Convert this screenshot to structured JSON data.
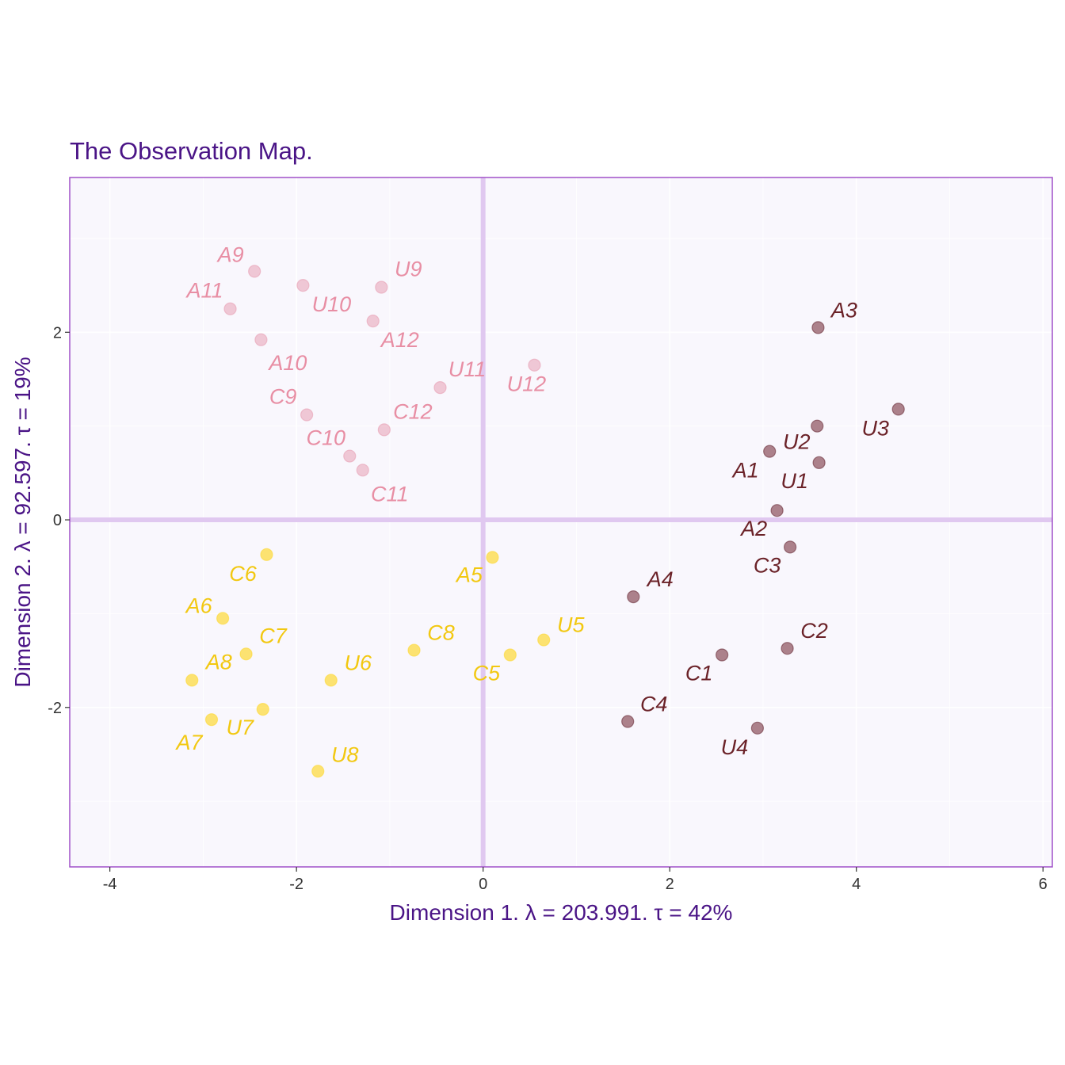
{
  "chart_data": {
    "type": "scatter",
    "title": "The Observation Map.",
    "xlabel": "Dimension 1.   λ = 203.991.  τ = 42%",
    "ylabel": "Dimension 2.   λ = 92.597.  τ = 19%",
    "xlim": [
      -4.43,
      6.1
    ],
    "ylim": [
      -3.7,
      3.65
    ],
    "xticks": [
      -4,
      -2,
      0,
      2,
      4,
      6
    ],
    "yticks": [
      -2,
      0,
      2
    ],
    "grid": true,
    "legend": "none",
    "colors": {
      "pink": "#e8a0b4",
      "yellow": "#fdd835",
      "maroon": "#8b4f5a",
      "maroon_label": "#6b2228",
      "yellow_label": "#f2c811",
      "pink_label": "#e88ea4",
      "panel_bg": "#f9f7fd",
      "border": "#a050c8",
      "origin_line": "#e0c8f0"
    },
    "series": [
      {
        "group": "pink",
        "points": [
          {
            "label": "A9",
            "x": -2.45,
            "y": 2.65
          },
          {
            "label": "A11",
            "x": -2.71,
            "y": 2.25
          },
          {
            "label": "A10",
            "x": -2.38,
            "y": 1.92
          },
          {
            "label": "U10",
            "x": -1.93,
            "y": 2.5
          },
          {
            "label": "U9",
            "x": -1.09,
            "y": 2.48
          },
          {
            "label": "A12",
            "x": -1.18,
            "y": 2.12
          },
          {
            "label": "U11",
            "x": -0.46,
            "y": 1.41
          },
          {
            "label": "U12",
            "x": 0.55,
            "y": 1.65
          },
          {
            "label": "C9",
            "x": -1.89,
            "y": 1.12
          },
          {
            "label": "C12",
            "x": -1.06,
            "y": 0.96
          },
          {
            "label": "C10",
            "x": -1.43,
            "y": 0.68
          },
          {
            "label": "C11",
            "x": -1.29,
            "y": 0.53
          }
        ]
      },
      {
        "group": "yellow",
        "points": [
          {
            "label": "C6",
            "x": -2.32,
            "y": -0.37
          },
          {
            "label": "A6",
            "x": -2.79,
            "y": -1.05
          },
          {
            "label": "C7",
            "x": -2.54,
            "y": -1.43
          },
          {
            "label": "A8",
            "x": -3.12,
            "y": -1.71
          },
          {
            "label": "A7",
            "x": -2.91,
            "y": -2.13
          },
          {
            "label": "U7",
            "x": -2.36,
            "y": -2.02
          },
          {
            "label": "U6",
            "x": -1.63,
            "y": -1.71
          },
          {
            "label": "U8",
            "x": -1.77,
            "y": -2.68
          },
          {
            "label": "C8",
            "x": -0.74,
            "y": -1.39
          },
          {
            "label": "A5",
            "x": 0.1,
            "y": -0.4
          },
          {
            "label": "C5",
            "x": 0.29,
            "y": -1.44
          },
          {
            "label": "U5",
            "x": 0.65,
            "y": -1.28
          }
        ]
      },
      {
        "group": "maroon",
        "points": [
          {
            "label": "A3",
            "x": 3.59,
            "y": 2.05
          },
          {
            "label": "U3",
            "x": 4.45,
            "y": 1.18
          },
          {
            "label": "U2",
            "x": 3.58,
            "y": 1.0
          },
          {
            "label": "A1",
            "x": 3.07,
            "y": 0.73
          },
          {
            "label": "U1",
            "x": 3.6,
            "y": 0.61
          },
          {
            "label": "A2",
            "x": 3.15,
            "y": 0.1
          },
          {
            "label": "C3",
            "x": 3.29,
            "y": -0.29
          },
          {
            "label": "A4",
            "x": 1.61,
            "y": -0.82
          },
          {
            "label": "C2",
            "x": 3.26,
            "y": -1.37
          },
          {
            "label": "C1",
            "x": 2.56,
            "y": -1.44
          },
          {
            "label": "C4",
            "x": 1.55,
            "y": -2.15
          },
          {
            "label": "U4",
            "x": 2.94,
            "y": -2.22
          }
        ]
      }
    ]
  }
}
